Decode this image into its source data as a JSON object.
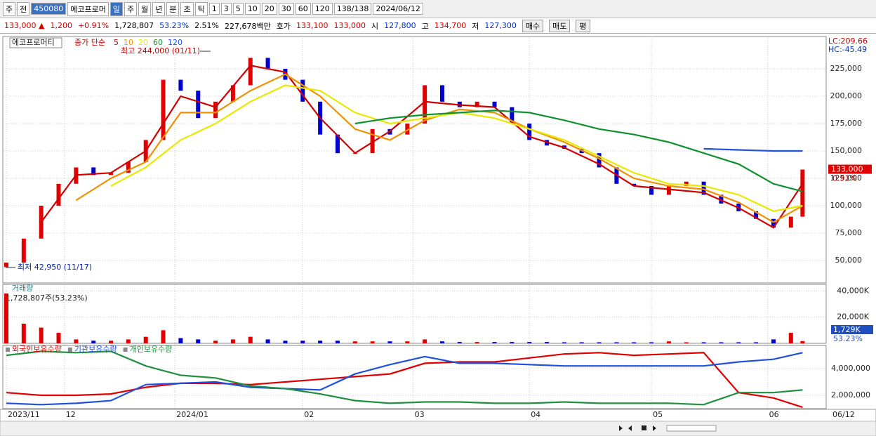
{
  "toolbar": {
    "items": [
      "주",
      "전",
      "450080",
      "에코프로머",
      "일",
      "주",
      "월",
      "년",
      "분",
      "초",
      "틱",
      "1",
      "3",
      "5",
      "10",
      "20",
      "30",
      "60",
      "120",
      "138/138",
      "2024/06/12"
    ]
  },
  "info": {
    "items": [
      "133,000 ▲",
      "1,200",
      "+0.91%",
      "1,728,807",
      "53.23%",
      "2.51%",
      "227,678백만",
      "호가",
      "133,100",
      "133,000",
      "시",
      "127,800",
      "고",
      "134,700",
      "저",
      "127,300"
    ],
    "buttons": [
      "매수",
      "매도",
      "평"
    ]
  },
  "chart_data": [
    {
      "type": "candlestick",
      "title": "에코프로머티",
      "legend_label": "종가 단순",
      "up_color": "#e00000",
      "down_color": "#0000d0",
      "days": [
        0,
        3,
        6,
        9,
        12,
        15,
        18,
        21,
        24,
        27,
        30,
        33,
        36,
        39,
        42,
        45,
        48,
        51,
        54,
        57,
        60,
        63,
        66,
        69,
        72,
        75,
        78,
        81,
        84,
        87,
        90,
        93,
        96,
        99,
        102,
        105,
        108,
        111,
        114,
        117,
        120,
        123,
        126,
        129,
        132,
        135,
        137
      ],
      "open": [
        44000,
        48000,
        70000,
        100000,
        120000,
        135000,
        128000,
        130000,
        140000,
        160000,
        215000,
        205000,
        180000,
        195000,
        210000,
        235000,
        225000,
        215000,
        195000,
        165000,
        148000,
        148000,
        170000,
        165000,
        175000,
        210000,
        195000,
        190000,
        195000,
        190000,
        175000,
        160000,
        155000,
        152000,
        148000,
        135000,
        120000,
        118000,
        110000,
        118000,
        122000,
        110000,
        102000,
        95000,
        88000,
        80000,
        90000
      ],
      "close": [
        48000,
        70000,
        100000,
        120000,
        135000,
        128000,
        130000,
        140000,
        160000,
        215000,
        205000,
        180000,
        195000,
        210000,
        235000,
        225000,
        215000,
        195000,
        165000,
        148000,
        148000,
        170000,
        165000,
        175000,
        210000,
        195000,
        190000,
        195000,
        190000,
        175000,
        160000,
        155000,
        152000,
        148000,
        135000,
        120000,
        118000,
        110000,
        118000,
        122000,
        110000,
        102000,
        95000,
        88000,
        80000,
        90000,
        133000
      ],
      "ma_days": [
        0,
        6,
        12,
        18,
        24,
        30,
        36,
        42,
        48,
        54,
        60,
        66,
        72,
        78,
        84,
        90,
        96,
        102,
        108,
        114,
        120,
        126,
        132,
        137
      ],
      "series": [
        {
          "name": "5",
          "color": "#d00000",
          "values": [
            null,
            85000,
            128000,
            130000,
            150000,
            200000,
            190000,
            228000,
            222000,
            180000,
            148000,
            168000,
            195000,
            192000,
            190000,
            163000,
            153000,
            138000,
            118000,
            115000,
            112000,
            98000,
            80000,
            120000
          ]
        },
        {
          "name": "10",
          "color": "#f09000",
          "values": [
            null,
            null,
            105000,
            125000,
            140000,
            185000,
            185000,
            205000,
            220000,
            200000,
            170000,
            160000,
            178000,
            188000,
            185000,
            170000,
            158000,
            143000,
            125000,
            118000,
            115000,
            103000,
            85000,
            100000
          ]
        },
        {
          "name": "20",
          "color": "#e8e800",
          "values": [
            null,
            null,
            null,
            118000,
            135000,
            160000,
            175000,
            195000,
            210000,
            205000,
            185000,
            175000,
            180000,
            185000,
            180000,
            170000,
            160000,
            145000,
            130000,
            120000,
            118000,
            110000,
            95000,
            100000
          ]
        },
        {
          "name": "60",
          "color": "#109030",
          "values": [
            null,
            null,
            null,
            null,
            null,
            null,
            null,
            null,
            null,
            null,
            175000,
            180000,
            183000,
            185000,
            187000,
            185000,
            178000,
            170000,
            165000,
            158000,
            148000,
            138000,
            120000,
            113000
          ]
        },
        {
          "name": "120",
          "color": "#2050e0",
          "values": [
            null,
            null,
            null,
            null,
            null,
            null,
            null,
            null,
            null,
            null,
            null,
            null,
            null,
            null,
            null,
            null,
            null,
            null,
            null,
            null,
            152000,
            151000,
            150000,
            150000
          ]
        }
      ],
      "ylim": [
        29500,
        254500
      ],
      "yticks": [
        {
          "value": 50000,
          "label": "50,000"
        },
        {
          "value": 75000,
          "label": "75,000"
        },
        {
          "value": 100000,
          "label": "100,000"
        },
        {
          "value": 125000,
          "label": "125,000"
        },
        {
          "value": 150000,
          "label": "150,000"
        },
        {
          "value": 175000,
          "label": "175,000"
        },
        {
          "value": 200000,
          "label": "200,000"
        },
        {
          "value": 225000,
          "label": "225,000"
        }
      ],
      "annotations": {
        "high": "최고 244,000 (01/11)",
        "low": "최저 42,950 (11/17)"
      },
      "lc": "LC:209.66",
      "hc": "HC:-45.49",
      "last_price_label": "133,000",
      "change_label": "0.91%",
      "x_labels": [
        {
          "index": 0,
          "label": "2023/11"
        },
        {
          "index": 10,
          "label": "12"
        },
        {
          "index": 29,
          "label": "2024/01"
        },
        {
          "index": 51,
          "label": "02"
        },
        {
          "index": 70,
          "label": "03"
        },
        {
          "index": 90,
          "label": "04"
        },
        {
          "index": 111,
          "label": "05"
        },
        {
          "index": 131,
          "label": "06"
        }
      ],
      "last_date": "06/12"
    },
    {
      "type": "bar",
      "title": "거래량",
      "subtitle": "1,728,807주(53.23%)",
      "days": [
        0,
        3,
        6,
        9,
        12,
        15,
        18,
        21,
        24,
        27,
        30,
        33,
        36,
        39,
        42,
        45,
        48,
        51,
        54,
        57,
        60,
        63,
        66,
        69,
        72,
        75,
        78,
        81,
        84,
        87,
        90,
        93,
        96,
        99,
        102,
        105,
        108,
        111,
        114,
        117,
        120,
        123,
        126,
        129,
        132,
        135,
        137
      ],
      "values": [
        38000,
        15000,
        12000,
        8000,
        3000,
        2000,
        2000,
        3000,
        5000,
        10000,
        4000,
        3000,
        2000,
        3000,
        5000,
        3000,
        2000,
        2000,
        2000,
        2000,
        1500,
        1500,
        1500,
        1500,
        3000,
        1500,
        1000,
        1000,
        1000,
        1000,
        1000,
        1000,
        800,
        800,
        800,
        800,
        800,
        800,
        1500,
        800,
        800,
        800,
        800,
        800,
        3000,
        8000,
        1729
      ],
      "ylim": [
        0,
        45000
      ],
      "yticks": [
        {
          "value": 20000,
          "label": "20,000K"
        },
        {
          "value": 40000,
          "label": "40,000K"
        }
      ],
      "last_label": "1,729K",
      "pct_label": "53.23%"
    },
    {
      "type": "line",
      "days": [
        0,
        6,
        12,
        18,
        24,
        30,
        36,
        42,
        48,
        54,
        60,
        66,
        72,
        78,
        84,
        90,
        96,
        102,
        108,
        114,
        120,
        126,
        132,
        137
      ],
      "series": [
        {
          "name": "외국인보유수량",
          "color": "#e00000",
          "values": [
            2200000,
            2000000,
            2000000,
            2100000,
            2600000,
            2900000,
            2900000,
            2800000,
            3000000,
            3200000,
            3400000,
            3600000,
            4400000,
            4500000,
            4500000,
            4800000,
            5100000,
            5200000,
            5000000,
            5100000,
            5200000,
            2200000,
            1800000,
            1100000
          ]
        },
        {
          "name": "기관보유수량",
          "color": "#2050e0",
          "values": [
            1400000,
            1300000,
            1400000,
            1600000,
            2800000,
            2900000,
            3000000,
            2600000,
            2500000,
            2400000,
            3600000,
            4300000,
            4900000,
            4400000,
            4400000,
            4300000,
            4200000,
            4200000,
            4200000,
            4200000,
            4200000,
            4500000,
            4700000,
            5200000
          ]
        },
        {
          "name": "개인보유수량",
          "color": "#209040",
          "values": [
            5000000,
            5300000,
            5200000,
            5300000,
            4200000,
            3500000,
            3300000,
            2700000,
            2500000,
            2100000,
            1600000,
            1400000,
            1500000,
            1500000,
            1400000,
            1400000,
            1500000,
            1400000,
            1400000,
            1400000,
            1300000,
            2200000,
            2200000,
            2400000
          ]
        }
      ],
      "ylim": [
        1000000,
        5740000
      ],
      "yticks": [
        {
          "value": 2000000,
          "label": "2,000,000"
        },
        {
          "value": 4000000,
          "label": "4,000,000"
        }
      ]
    }
  ]
}
